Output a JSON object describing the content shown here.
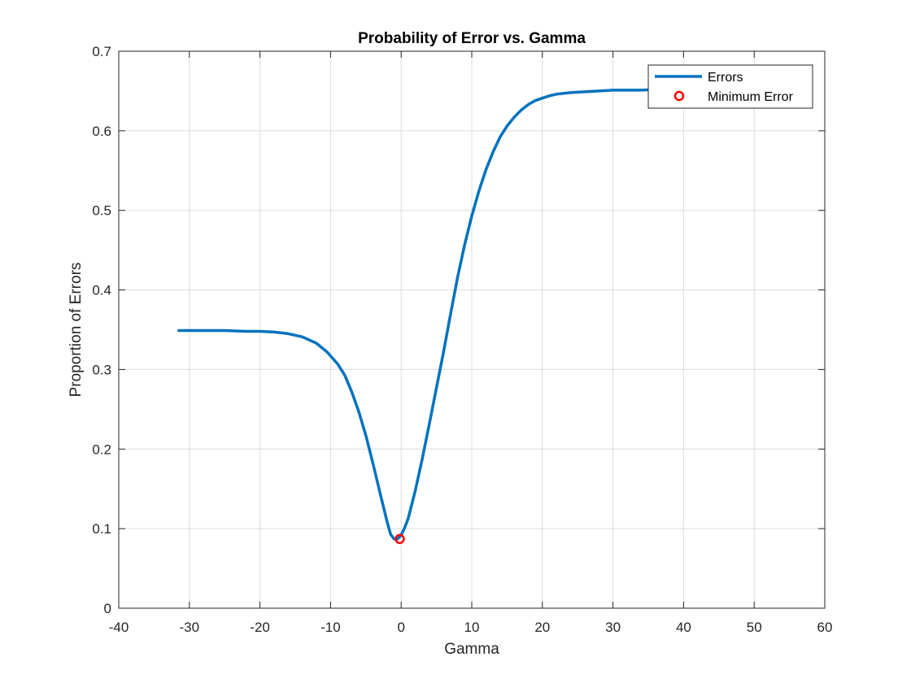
{
  "chart_data": {
    "type": "line",
    "title": "Probability of Error vs. Gamma",
    "xlabel": "Gamma",
    "ylabel": "Proportion of Errors",
    "xlim": [
      -40,
      60
    ],
    "ylim": [
      0,
      0.7
    ],
    "xticks": [
      -40,
      -30,
      -20,
      -10,
      0,
      10,
      20,
      30,
      40,
      50,
      60
    ],
    "xtick_labels": [
      "-40",
      "-30",
      "-20",
      "-10",
      "0",
      "10",
      "20",
      "30",
      "40",
      "50",
      "60"
    ],
    "yticks": [
      0,
      0.1,
      0.2,
      0.3,
      0.4,
      0.5,
      0.6,
      0.7
    ],
    "ytick_labels": [
      "0",
      "0.1",
      "0.2",
      "0.3",
      "0.4",
      "0.5",
      "0.6",
      "0.7"
    ],
    "grid": true,
    "legend_position": "top-right",
    "series": [
      {
        "name": "Errors",
        "color": "#0072BD",
        "x": [
          -31.5,
          -28,
          -25,
          -22,
          -20,
          -18,
          -16,
          -14,
          -12,
          -10.5,
          -9,
          -8,
          -7,
          -6,
          -5,
          -4,
          -3,
          -2,
          -1.5,
          -1,
          -0.5,
          0,
          0.5,
          1,
          2,
          3,
          4,
          5,
          6,
          7,
          8,
          9,
          10,
          11,
          12,
          13,
          14,
          15,
          16,
          17,
          18,
          19,
          20,
          21,
          22,
          24,
          26,
          28,
          30,
          32,
          34,
          36
        ],
        "y": [
          0.349,
          0.349,
          0.349,
          0.348,
          0.348,
          0.347,
          0.345,
          0.341,
          0.333,
          0.322,
          0.307,
          0.293,
          0.272,
          0.247,
          0.217,
          0.182,
          0.145,
          0.109,
          0.093,
          0.087,
          0.087,
          0.092,
          0.101,
          0.113,
          0.148,
          0.188,
          0.232,
          0.277,
          0.322,
          0.37,
          0.416,
          0.457,
          0.493,
          0.524,
          0.551,
          0.573,
          0.592,
          0.606,
          0.617,
          0.626,
          0.633,
          0.638,
          0.641,
          0.644,
          0.646,
          0.648,
          0.649,
          0.65,
          0.651,
          0.651,
          0.651,
          0.652
        ]
      },
      {
        "name": "Minimum Error",
        "color": "#FF0000",
        "marker": "circle",
        "x": [
          -0.2
        ],
        "y": [
          0.087
        ]
      }
    ]
  }
}
